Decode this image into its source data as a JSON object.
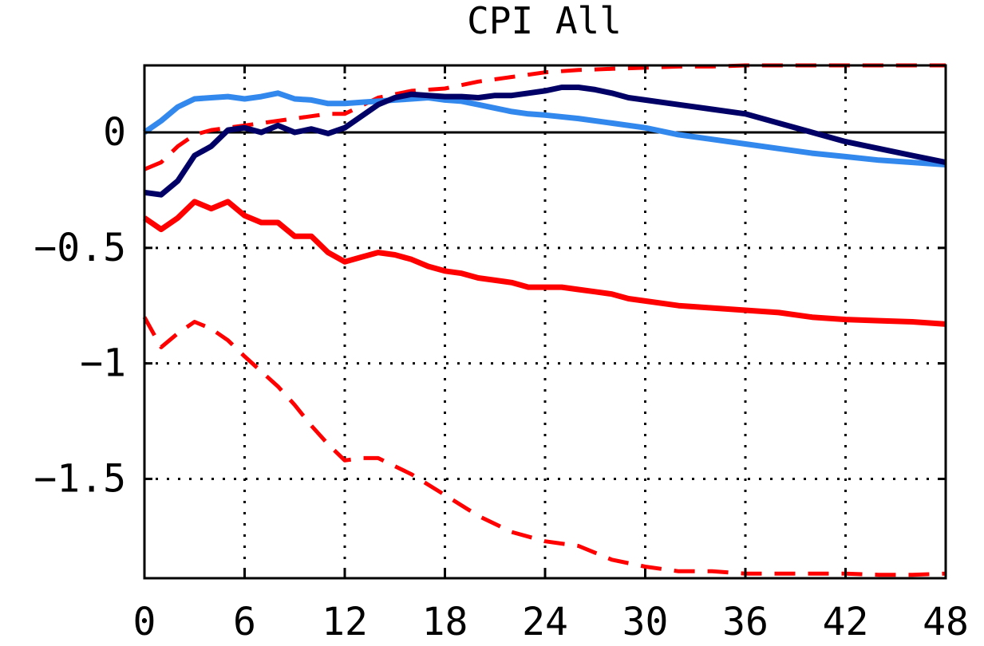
{
  "chart_data": {
    "type": "line",
    "title": "CPI All",
    "xlabel": "",
    "ylabel": "",
    "xlim": [
      0,
      48
    ],
    "ylim": [
      -1.93,
      0.29
    ],
    "xticks": [
      0,
      6,
      12,
      18,
      24,
      30,
      36,
      42,
      48
    ],
    "xtick_labels": [
      "0",
      "6",
      "12",
      "18",
      "24",
      "30",
      "36",
      "42",
      "48"
    ],
    "yticks": [
      0,
      -0.5,
      -1,
      -1.5
    ],
    "ytick_labels": [
      "0",
      "−0.5",
      "−1",
      "−1.5"
    ],
    "grid": true,
    "zero_line": true,
    "series": [
      {
        "color": "#ff0000",
        "style": "dashed",
        "x": [
          0,
          1,
          2,
          3,
          4,
          5,
          6,
          8,
          10,
          11,
          12,
          14,
          16,
          18,
          20,
          22,
          24,
          26,
          28,
          30,
          32,
          34,
          36,
          38,
          40,
          42,
          44,
          46,
          48
        ],
        "values": [
          -0.16,
          -0.13,
          -0.06,
          -0.01,
          0.01,
          0.02,
          0.03,
          0.05,
          0.07,
          0.08,
          0.08,
          0.15,
          0.18,
          0.19,
          0.22,
          0.24,
          0.26,
          0.27,
          0.275,
          0.28,
          0.285,
          0.285,
          0.29,
          0.29,
          0.29,
          0.29,
          0.29,
          0.29,
          0.29
        ]
      },
      {
        "color": "#ff0000",
        "style": "dashed",
        "x": [
          0,
          1,
          2,
          3,
          4,
          5,
          6,
          8,
          9,
          10,
          11,
          12,
          13,
          14,
          16,
          18,
          20,
          22,
          24,
          26,
          28,
          30,
          32,
          34,
          36,
          38,
          40,
          42,
          44,
          46,
          48
        ],
        "values": [
          -0.8,
          -0.93,
          -0.87,
          -0.82,
          -0.85,
          -0.9,
          -0.97,
          -1.1,
          -1.18,
          -1.27,
          -1.35,
          -1.42,
          -1.41,
          -1.41,
          -1.48,
          -1.57,
          -1.66,
          -1.73,
          -1.77,
          -1.79,
          -1.85,
          -1.88,
          -1.9,
          -1.9,
          -1.91,
          -1.91,
          -1.91,
          -1.91,
          -1.915,
          -1.915,
          -1.91
        ]
      },
      {
        "color": "#ff0000",
        "style": "solid",
        "x": [
          0,
          1,
          2,
          3,
          4,
          5,
          6,
          7,
          8,
          9,
          10,
          11,
          12,
          13,
          14,
          15,
          16,
          17,
          18,
          19,
          20,
          21,
          22,
          23,
          24,
          25,
          26,
          27,
          28,
          29,
          30,
          32,
          34,
          36,
          38,
          40,
          42,
          44,
          46,
          48
        ],
        "values": [
          -0.37,
          -0.42,
          -0.37,
          -0.3,
          -0.33,
          -0.3,
          -0.36,
          -0.39,
          -0.39,
          -0.45,
          -0.45,
          -0.52,
          -0.56,
          -0.54,
          -0.52,
          -0.53,
          -0.55,
          -0.58,
          -0.6,
          -0.61,
          -0.63,
          -0.64,
          -0.65,
          -0.67,
          -0.67,
          -0.67,
          -0.68,
          -0.69,
          -0.7,
          -0.72,
          -0.73,
          -0.75,
          -0.76,
          -0.77,
          -0.78,
          -0.8,
          -0.81,
          -0.815,
          -0.82,
          -0.83
        ]
      },
      {
        "color": "#3388ee",
        "style": "solid",
        "x": [
          0,
          1,
          2,
          3,
          4,
          5,
          6,
          7,
          8,
          9,
          10,
          11,
          12,
          13,
          14,
          15,
          16,
          17,
          18,
          19,
          20,
          21,
          22,
          23,
          24,
          26,
          28,
          30,
          32,
          34,
          36,
          38,
          40,
          42,
          44,
          46,
          48
        ],
        "values": [
          0,
          0.05,
          0.11,
          0.145,
          0.15,
          0.155,
          0.145,
          0.155,
          0.17,
          0.145,
          0.14,
          0.125,
          0.125,
          0.13,
          0.135,
          0.14,
          0.145,
          0.15,
          0.14,
          0.135,
          0.12,
          0.105,
          0.09,
          0.08,
          0.075,
          0.06,
          0.04,
          0.02,
          -0.01,
          -0.03,
          -0.05,
          -0.07,
          -0.09,
          -0.105,
          -0.12,
          -0.13,
          -0.14
        ]
      },
      {
        "color": "#000066",
        "style": "solid",
        "x": [
          0,
          1,
          2,
          3,
          4,
          5,
          6,
          7,
          8,
          9,
          10,
          11,
          12,
          13,
          14,
          15,
          16,
          17,
          18,
          19,
          20,
          21,
          22,
          23,
          24,
          25,
          26,
          27,
          28,
          29,
          30,
          32,
          34,
          36,
          38,
          40,
          42,
          44,
          46,
          48
        ],
        "values": [
          -0.26,
          -0.27,
          -0.21,
          -0.1,
          -0.06,
          0.01,
          0.02,
          0.0,
          0.03,
          0.0,
          0.015,
          -0.005,
          0.02,
          0.07,
          0.12,
          0.15,
          0.165,
          0.16,
          0.155,
          0.155,
          0.15,
          0.16,
          0.16,
          0.17,
          0.18,
          0.195,
          0.195,
          0.185,
          0.17,
          0.15,
          0.14,
          0.12,
          0.1,
          0.08,
          0.04,
          0.0,
          -0.04,
          -0.07,
          -0.1,
          -0.13
        ]
      }
    ]
  }
}
